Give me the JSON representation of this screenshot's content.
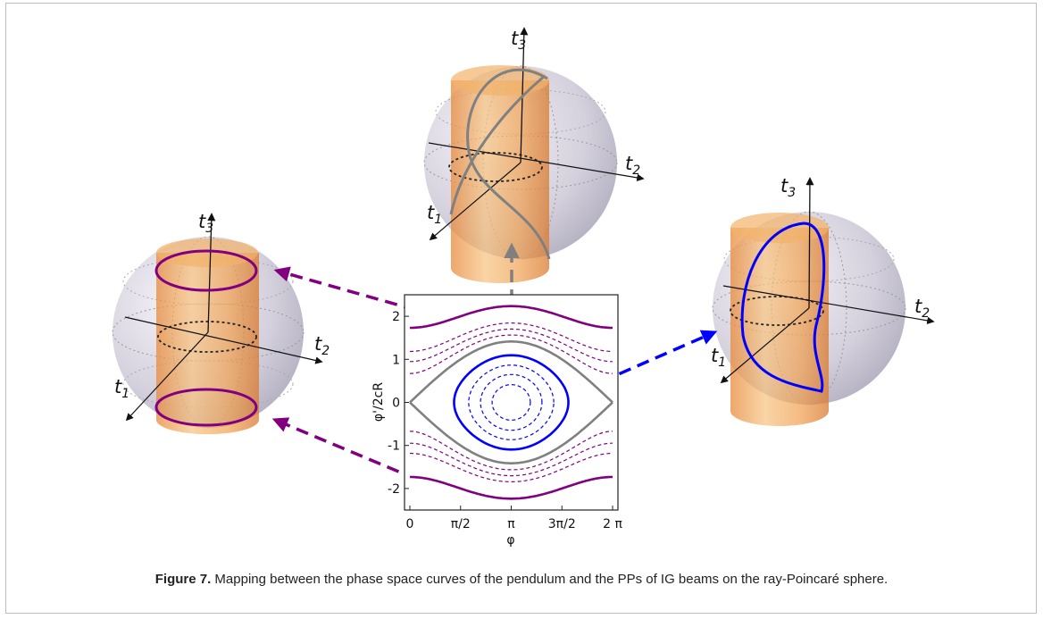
{
  "figure": {
    "caption_label": "Figure 7.",
    "caption_text": " Mapping between the phase space curves of the pendulum and the PPs of IG beams on the ray-Poincaré sphere."
  },
  "axes": {
    "t1": "t",
    "t1_sub": "1",
    "t2": "t",
    "t2_sub": "2",
    "t3": "t",
    "t3_sub": "3"
  },
  "phase_plot": {
    "xlabel": "φ",
    "ylabel": "φ'/2cR",
    "x_ticks": [
      "0",
      "π/2",
      "π",
      "3π/2",
      "2 π"
    ],
    "y_ticks": [
      "2",
      "1",
      "0",
      "-1",
      "-2"
    ]
  },
  "chart_data": {
    "type": "line",
    "xlabel": "φ",
    "ylabel": "φ'/2cR",
    "xlim": [
      0,
      6.2832
    ],
    "ylim": [
      -2.5,
      2.5
    ],
    "series": [
      {
        "kind": "rotation-outer",
        "color": "#800080",
        "style": "solid",
        "energy": 5.0
      },
      {
        "kind": "rotation",
        "color": "#800080",
        "style": "dashed",
        "energy": 3.4
      },
      {
        "kind": "rotation",
        "color": "#800080",
        "style": "dashed",
        "energy": 2.9
      },
      {
        "kind": "rotation",
        "color": "#800080",
        "style": "dashed",
        "energy": 2.45
      },
      {
        "kind": "separatrix",
        "color": "#808080",
        "style": "solid",
        "energy": 2.0
      },
      {
        "kind": "libration",
        "color": "#0000ff",
        "style": "solid",
        "energy": 1.2
      },
      {
        "kind": "libration",
        "color": "#0000ff",
        "style": "dashed",
        "energy": 0.75
      },
      {
        "kind": "libration",
        "color": "#0000ff",
        "style": "dashed",
        "energy": 0.42
      },
      {
        "kind": "libration",
        "color": "#0000ff",
        "style": "dashed",
        "energy": 0.17
      }
    ]
  },
  "colors": {
    "purple": "#800080",
    "gray": "#808080",
    "blue": "#0000ff",
    "cylinder": "#f3a64f",
    "sphere": "#c9c6d6"
  }
}
